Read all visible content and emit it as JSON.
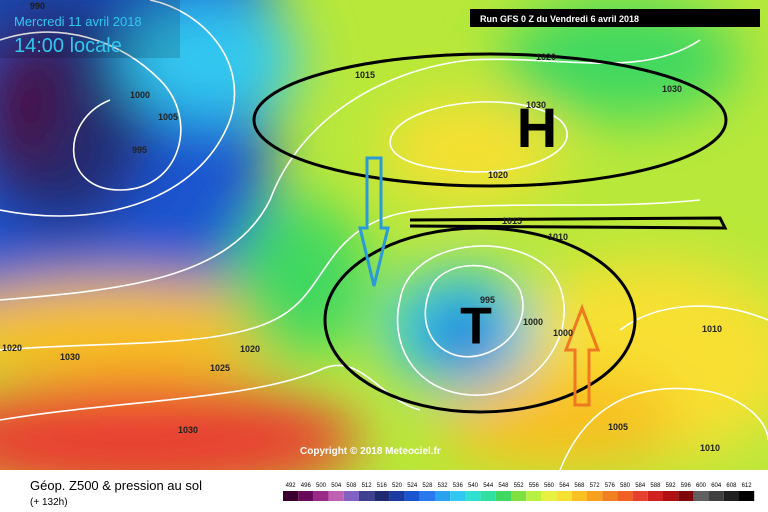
{
  "header": {
    "date": "Mercredi 11 avril 2018",
    "time": "14:00 locale",
    "run": "Run GFS 0 Z du Vendredi 6 avril 2018"
  },
  "map": {
    "high_label": "H",
    "low_label": "T",
    "isobar_labels": [
      "990",
      "1000",
      "1005",
      "995",
      "1015",
      "1020",
      "1030",
      "1030",
      "1020",
      "1015",
      "1010",
      "995",
      "1000",
      "1000",
      "1010",
      "1020",
      "1030",
      "1025",
      "1020",
      "1030",
      "1005",
      "1010"
    ],
    "copyright": "Copyright © 2018 Meteociel.fr"
  },
  "footer": {
    "title": "Géop. Z500 & pression au sol",
    "lead": "(+ 132h)"
  },
  "colorbar": {
    "labels": [
      492,
      496,
      500,
      504,
      508,
      512,
      516,
      520,
      524,
      528,
      532,
      536,
      540,
      544,
      548,
      552,
      556,
      560,
      564,
      568,
      572,
      576,
      580,
      584,
      588,
      592,
      596,
      600,
      604,
      608,
      612
    ],
    "colors": [
      "#3a0030",
      "#6a0a5a",
      "#9a2a8a",
      "#c060b0",
      "#8060c0",
      "#404090",
      "#202a70",
      "#1a3aa0",
      "#1a55d0",
      "#2a78f0",
      "#2aa0f0",
      "#30c8f0",
      "#30e0d0",
      "#30e0a0",
      "#40d860",
      "#80e040",
      "#b8f040",
      "#e8f040",
      "#f8e030",
      "#f8c020",
      "#f8a020",
      "#f08020",
      "#f06020",
      "#e84030",
      "#d02020",
      "#b01010",
      "#800808",
      "#606060",
      "#404040",
      "#202020",
      "#000000"
    ]
  }
}
